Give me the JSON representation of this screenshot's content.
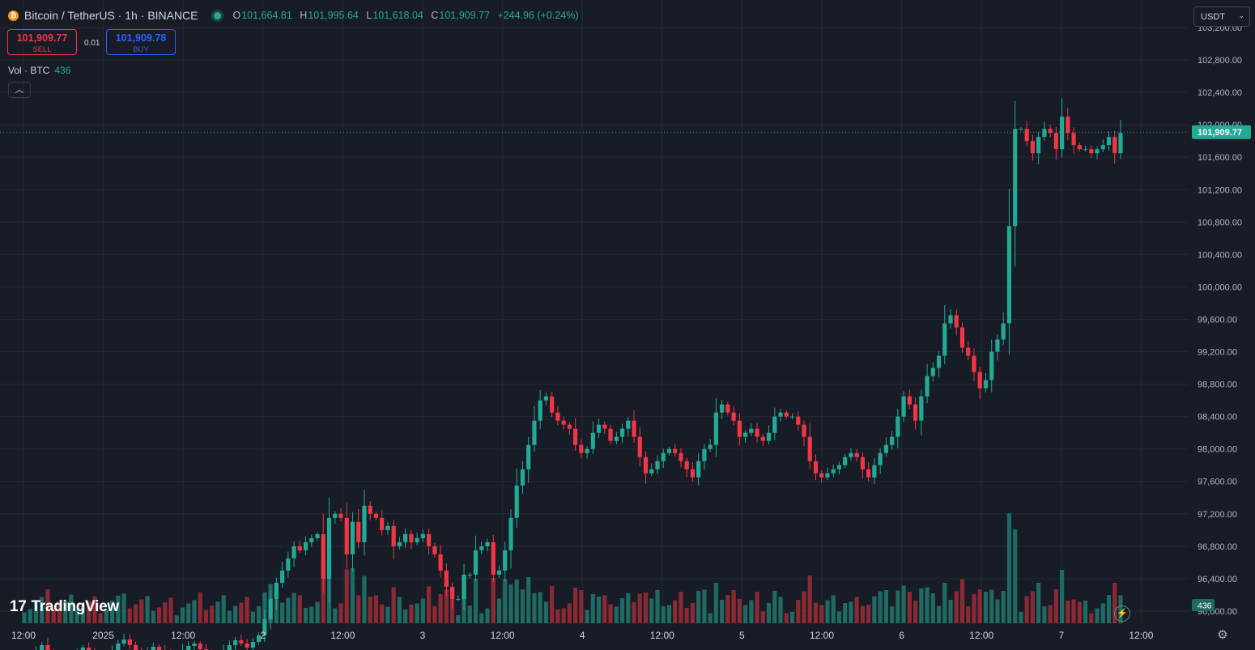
{
  "header": {
    "title": "Bitcoin / TetherUS · 1h · BINANCE",
    "coin_glyph": "₿",
    "ohlc": {
      "o_label": "O",
      "o": "101,664.81",
      "h_label": "H",
      "h": "101,995.64",
      "l_label": "L",
      "l": "101,618.04",
      "c_label": "C",
      "c": "101,909.77",
      "change": "+244.96 (+0.24%)"
    }
  },
  "trade": {
    "sell_price": "101,909.77",
    "sell_label": "SELL",
    "spread": "0.01",
    "buy_price": "101,909.78",
    "buy_label": "BUY"
  },
  "volume_legend": {
    "label": "Vol · BTC",
    "value": "436"
  },
  "currency": {
    "label": "USDT"
  },
  "branding": {
    "name": "TradingView",
    "logo": "17"
  },
  "colors": {
    "up": "#22ab94",
    "down": "#f23645",
    "up_vol": "#1f6a63",
    "down_vol": "#8a2a33",
    "background": "#181c27",
    "grid": "#242833"
  },
  "chart_data": {
    "type": "candlestick",
    "title": "Bitcoin / TetherUS · 1h · BINANCE",
    "interval": "1h",
    "price_axis": {
      "ticks": [
        "96,000.00",
        "96,400.00",
        "96,800.00",
        "97,200.00",
        "97,600.00",
        "98,000.00",
        "98,400.00",
        "98,800.00",
        "99,200.00",
        "99,600.00",
        "100,000.00",
        "100,400.00",
        "100,800.00",
        "101,200.00",
        "101,600.00",
        "102,000.00",
        "102,400.00",
        "102,800.00",
        "103,200.00"
      ],
      "range": [
        95520,
        103540
      ]
    },
    "time_axis": {
      "ticks": [
        "12:00",
        "2025",
        "12:00",
        "2",
        "12:00",
        "3",
        "12:00",
        "4",
        "12:00",
        "5",
        "12:00",
        "6",
        "12:00",
        "7",
        "12:00"
      ]
    },
    "last_price": {
      "value": 101909.77,
      "label": "101,909.77"
    },
    "last_volume": {
      "value": 436,
      "label": "436"
    },
    "candles_close": [
      95400,
      95440,
      95510,
      95580,
      95470,
      95400,
      95300,
      95340,
      95400,
      95480,
      95550,
      95490,
      95430,
      95380,
      95420,
      95510,
      95600,
      95650,
      95580,
      95520,
      95460,
      95500,
      95560,
      95520,
      95480,
      95440,
      95460,
      95520,
      95570,
      95600,
      95530,
      95480,
      95440,
      95470,
      95520,
      95580,
      95640,
      95600,
      95550,
      95620,
      95700,
      95900,
      96150,
      96350,
      96500,
      96650,
      96800,
      96750,
      96850,
      96900,
      96950,
      96400,
      97150,
      97200,
      97150,
      96700,
      97100,
      96850,
      97300,
      97200,
      97150,
      97000,
      97050,
      96800,
      96850,
      96950,
      96850,
      96900,
      96950,
      96800,
      96700,
      96500,
      96300,
      96150,
      96150,
      96450,
      96450,
      96750,
      96800,
      96850,
      96450,
      96500,
      96750,
      97150,
      97550,
      97750,
      98050,
      98350,
      98600,
      98650,
      98450,
      98350,
      98300,
      98250,
      98050,
      97950,
      98000,
      98200,
      98300,
      98250,
      98100,
      98150,
      98250,
      98350,
      98150,
      97900,
      97700,
      97750,
      97850,
      97950,
      98000,
      97950,
      97850,
      97750,
      97650,
      97850,
      98000,
      98050,
      98450,
      98550,
      98450,
      98350,
      98150,
      98200,
      98250,
      98150,
      98100,
      98200,
      98400,
      98450,
      98400,
      98400,
      98300,
      98150,
      97850,
      97700,
      97650,
      97700,
      97750,
      97800,
      97900,
      97950,
      97900,
      97750,
      97650,
      97800,
      97950,
      98050,
      98150,
      98400,
      98650,
      98550,
      98350,
      98650,
      98900,
      99000,
      99150,
      99550,
      99650,
      99500,
      99250,
      99150,
      98950,
      98750,
      98850,
      99200,
      99350,
      99550,
      100750,
      101950,
      101950,
      101800,
      101650,
      101850,
      101950,
      101900,
      101700,
      102100,
      101900,
      101750,
      101700,
      101700,
      101650,
      101700,
      101750,
      101850,
      101650,
      101900
    ]
  }
}
